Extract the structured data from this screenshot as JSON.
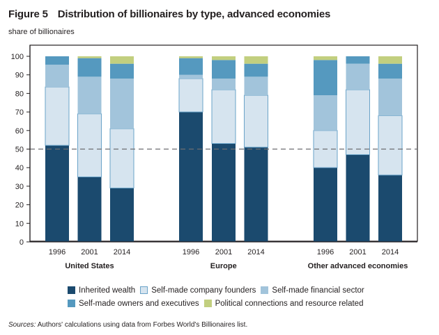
{
  "figure": {
    "number": "Figure 5",
    "title": "Distribution of billionaires by type, advanced economies",
    "sources_label": "Sources:",
    "sources_text": "Authors' calculations using data from Forbes World's Billionaires list."
  },
  "chart_data": {
    "type": "bar",
    "stacked": true,
    "title": "Distribution of billionaires by type, advanced economies",
    "ylabel": "share of billionaires",
    "xlabel": "",
    "ylim": [
      0,
      100
    ],
    "yticks": [
      0,
      10,
      20,
      30,
      40,
      50,
      60,
      70,
      80,
      90,
      100
    ],
    "reference_line": {
      "y": 50,
      "style": "dashed"
    },
    "grid": false,
    "legend_position": "bottom",
    "groups": [
      {
        "name": "United States",
        "categories": [
          "1996",
          "2001",
          "2014"
        ]
      },
      {
        "name": "Europe",
        "categories": [
          "1996",
          "2001",
          "2014"
        ]
      },
      {
        "name": "Other advanced economies",
        "categories": [
          "1996",
          "2001",
          "2014"
        ]
      }
    ],
    "series": [
      {
        "name": "Inherited wealth",
        "color": "#1b4a6e",
        "values": [
          [
            52,
            35,
            29
          ],
          [
            70,
            53,
            51
          ],
          [
            40,
            47,
            36
          ]
        ]
      },
      {
        "name": "Self-made company founders",
        "color": "#d6e4ef",
        "border": "#6aa3c8",
        "values": [
          [
            31.5,
            34,
            32
          ],
          [
            18,
            29,
            28
          ],
          [
            20,
            35,
            32
          ]
        ]
      },
      {
        "name": "Self-made financial sector",
        "color": "#a2c4db",
        "values": [
          [
            12,
            20,
            27
          ],
          [
            2,
            6,
            10
          ],
          [
            19,
            14,
            20
          ]
        ]
      },
      {
        "name": "Self-made owners and executives",
        "color": "#5599bf",
        "values": [
          [
            4.5,
            10,
            8
          ],
          [
            9,
            10,
            7
          ],
          [
            19,
            4,
            8
          ]
        ]
      },
      {
        "name": "Political connections and resource related",
        "color": "#c2cf7f",
        "values": [
          [
            0,
            1,
            4
          ],
          [
            1,
            2,
            4
          ],
          [
            2,
            0,
            4
          ]
        ]
      }
    ]
  }
}
